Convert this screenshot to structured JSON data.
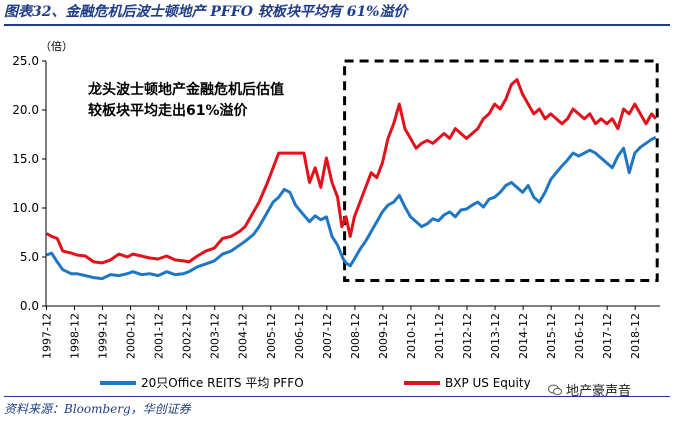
{
  "figure_title": "图表32、金融危机后波士顿地产 PFFO 较板块平均有 61%溢价",
  "source_note": "资料来源：Bloomberg，华创证券",
  "watermark_text": "地产豪声音",
  "watermark_icon": "wechat-icon",
  "colors": {
    "blue_series": "#1f77c4",
    "red_series": "#e3111b",
    "axis": "#000000",
    "title": "#1f3d8a"
  },
  "chart_data": {
    "type": "line",
    "y_unit": "（倍）",
    "annotation": [
      "龙头波士顿地产金融危机后估值",
      "较板块平均走出61%溢价"
    ],
    "highlight_box": {
      "x_from": 2008.55,
      "x_to": 2019.7,
      "y_from": 2.6,
      "y_to": 25.0,
      "style": "dashed"
    },
    "ylim": [
      0,
      25
    ],
    "yticks": [
      0.0,
      5.0,
      10.0,
      15.0,
      20.0,
      25.0
    ],
    "xlim": [
      1997.9,
      2019.8
    ],
    "xticks": [
      "1997-12",
      "1998-12",
      "1999-12",
      "2000-12",
      "2001-12",
      "2002-12",
      "2003-12",
      "2004-12",
      "2005-12",
      "2006-12",
      "2007-12",
      "2008-12",
      "2009-12",
      "2010-12",
      "2011-12",
      "2012-12",
      "2013-12",
      "2014-12",
      "2015-12",
      "2016-12",
      "2017-12",
      "2018-12"
    ],
    "legend_position": "bottom",
    "grid": false,
    "series": [
      {
        "name": "20只Office REITS 平均 PFFO",
        "color": "#1f77c4",
        "points": [
          [
            1997.92,
            5.2
          ],
          [
            1998.1,
            5.4
          ],
          [
            1998.3,
            4.5
          ],
          [
            1998.5,
            3.7
          ],
          [
            1998.8,
            3.3
          ],
          [
            1999.0,
            3.3
          ],
          [
            1999.3,
            3.1
          ],
          [
            1999.6,
            2.9
          ],
          [
            1999.9,
            2.8
          ],
          [
            2000.2,
            3.2
          ],
          [
            2000.5,
            3.1
          ],
          [
            2000.8,
            3.3
          ],
          [
            2001.0,
            3.5
          ],
          [
            2001.3,
            3.2
          ],
          [
            2001.6,
            3.3
          ],
          [
            2001.9,
            3.1
          ],
          [
            2002.2,
            3.5
          ],
          [
            2002.5,
            3.2
          ],
          [
            2002.8,
            3.3
          ],
          [
            2003.0,
            3.5
          ],
          [
            2003.3,
            4.0
          ],
          [
            2003.6,
            4.3
          ],
          [
            2003.9,
            4.6
          ],
          [
            2004.2,
            5.3
          ],
          [
            2004.5,
            5.6
          ],
          [
            2004.8,
            6.2
          ],
          [
            2005.0,
            6.6
          ],
          [
            2005.3,
            7.3
          ],
          [
            2005.5,
            8.1
          ],
          [
            2005.8,
            9.6
          ],
          [
            2006.0,
            10.6
          ],
          [
            2006.2,
            11.1
          ],
          [
            2006.4,
            11.9
          ],
          [
            2006.6,
            11.6
          ],
          [
            2006.8,
            10.3
          ],
          [
            2007.0,
            9.6
          ],
          [
            2007.3,
            8.6
          ],
          [
            2007.5,
            9.2
          ],
          [
            2007.7,
            8.8
          ],
          [
            2007.9,
            9.1
          ],
          [
            2008.1,
            7.1
          ],
          [
            2008.3,
            6.2
          ],
          [
            2008.5,
            4.8
          ],
          [
            2008.6,
            4.4
          ],
          [
            2008.75,
            4.1
          ],
          [
            2008.9,
            4.8
          ],
          [
            2009.1,
            5.8
          ],
          [
            2009.3,
            6.6
          ],
          [
            2009.5,
            7.6
          ],
          [
            2009.7,
            8.6
          ],
          [
            2009.9,
            9.6
          ],
          [
            2010.1,
            10.3
          ],
          [
            2010.3,
            10.6
          ],
          [
            2010.5,
            11.3
          ],
          [
            2010.7,
            10.1
          ],
          [
            2010.9,
            9.1
          ],
          [
            2011.1,
            8.6
          ],
          [
            2011.3,
            8.1
          ],
          [
            2011.5,
            8.4
          ],
          [
            2011.7,
            8.9
          ],
          [
            2011.9,
            8.7
          ],
          [
            2012.1,
            9.3
          ],
          [
            2012.3,
            9.6
          ],
          [
            2012.5,
            9.1
          ],
          [
            2012.7,
            9.8
          ],
          [
            2012.9,
            9.9
          ],
          [
            2013.1,
            10.3
          ],
          [
            2013.3,
            10.6
          ],
          [
            2013.5,
            10.1
          ],
          [
            2013.7,
            10.9
          ],
          [
            2013.9,
            11.1
          ],
          [
            2014.1,
            11.6
          ],
          [
            2014.3,
            12.3
          ],
          [
            2014.5,
            12.6
          ],
          [
            2014.7,
            12.1
          ],
          [
            2014.9,
            11.6
          ],
          [
            2015.1,
            12.3
          ],
          [
            2015.3,
            11.1
          ],
          [
            2015.5,
            10.6
          ],
          [
            2015.7,
            11.6
          ],
          [
            2015.9,
            12.9
          ],
          [
            2016.1,
            13.6
          ],
          [
            2016.3,
            14.3
          ],
          [
            2016.5,
            14.9
          ],
          [
            2016.7,
            15.6
          ],
          [
            2016.9,
            15.3
          ],
          [
            2017.1,
            15.6
          ],
          [
            2017.3,
            15.9
          ],
          [
            2017.5,
            15.6
          ],
          [
            2017.7,
            15.1
          ],
          [
            2017.9,
            14.6
          ],
          [
            2018.1,
            14.1
          ],
          [
            2018.3,
            15.3
          ],
          [
            2018.5,
            16.1
          ],
          [
            2018.7,
            13.6
          ],
          [
            2018.9,
            15.6
          ],
          [
            2019.1,
            16.2
          ],
          [
            2019.3,
            16.6
          ],
          [
            2019.5,
            17.0
          ],
          [
            2019.65,
            17.2
          ]
        ]
      },
      {
        "name": "BXP US Equity",
        "color": "#e3111b",
        "points": [
          [
            1997.92,
            7.4
          ],
          [
            1998.1,
            7.1
          ],
          [
            1998.3,
            6.9
          ],
          [
            1998.5,
            5.6
          ],
          [
            1998.8,
            5.4
          ],
          [
            1999.0,
            5.2
          ],
          [
            1999.3,
            5.1
          ],
          [
            1999.6,
            4.5
          ],
          [
            1999.9,
            4.4
          ],
          [
            2000.2,
            4.7
          ],
          [
            2000.5,
            5.3
          ],
          [
            2000.8,
            5.0
          ],
          [
            2001.0,
            5.3
          ],
          [
            2001.3,
            5.1
          ],
          [
            2001.6,
            4.9
          ],
          [
            2001.9,
            4.8
          ],
          [
            2002.2,
            5.1
          ],
          [
            2002.5,
            4.7
          ],
          [
            2002.8,
            4.6
          ],
          [
            2003.0,
            4.5
          ],
          [
            2003.3,
            5.1
          ],
          [
            2003.6,
            5.6
          ],
          [
            2003.9,
            5.9
          ],
          [
            2004.2,
            6.9
          ],
          [
            2004.5,
            7.1
          ],
          [
            2004.8,
            7.6
          ],
          [
            2005.0,
            8.1
          ],
          [
            2005.3,
            9.6
          ],
          [
            2005.5,
            10.6
          ],
          [
            2005.8,
            12.6
          ],
          [
            2006.0,
            14.1
          ],
          [
            2006.2,
            15.6
          ],
          [
            2006.5,
            15.6
          ],
          [
            2006.8,
            15.6
          ],
          [
            2007.1,
            15.6
          ],
          [
            2007.3,
            12.6
          ],
          [
            2007.5,
            14.1
          ],
          [
            2007.7,
            12.1
          ],
          [
            2007.9,
            15.1
          ],
          [
            2008.1,
            12.6
          ],
          [
            2008.3,
            11.1
          ],
          [
            2008.45,
            8.1
          ],
          [
            2008.6,
            9.1
          ],
          [
            2008.75,
            7.1
          ],
          [
            2008.9,
            9.1
          ],
          [
            2009.1,
            10.6
          ],
          [
            2009.3,
            12.1
          ],
          [
            2009.5,
            13.6
          ],
          [
            2009.7,
            13.1
          ],
          [
            2009.9,
            14.6
          ],
          [
            2010.1,
            17.1
          ],
          [
            2010.3,
            18.6
          ],
          [
            2010.5,
            20.6
          ],
          [
            2010.7,
            18.1
          ],
          [
            2010.9,
            17.1
          ],
          [
            2011.1,
            16.1
          ],
          [
            2011.3,
            16.6
          ],
          [
            2011.5,
            16.9
          ],
          [
            2011.7,
            16.6
          ],
          [
            2011.9,
            17.1
          ],
          [
            2012.1,
            17.6
          ],
          [
            2012.3,
            17.1
          ],
          [
            2012.5,
            18.1
          ],
          [
            2012.7,
            17.6
          ],
          [
            2012.9,
            17.1
          ],
          [
            2013.1,
            17.6
          ],
          [
            2013.3,
            18.1
          ],
          [
            2013.5,
            19.1
          ],
          [
            2013.7,
            19.6
          ],
          [
            2013.9,
            20.6
          ],
          [
            2014.1,
            20.1
          ],
          [
            2014.3,
            21.1
          ],
          [
            2014.5,
            22.6
          ],
          [
            2014.7,
            23.1
          ],
          [
            2014.9,
            21.6
          ],
          [
            2015.1,
            20.6
          ],
          [
            2015.3,
            19.6
          ],
          [
            2015.5,
            20.1
          ],
          [
            2015.7,
            19.1
          ],
          [
            2015.9,
            19.6
          ],
          [
            2016.1,
            19.1
          ],
          [
            2016.3,
            18.6
          ],
          [
            2016.5,
            19.1
          ],
          [
            2016.7,
            20.1
          ],
          [
            2016.9,
            19.6
          ],
          [
            2017.1,
            19.1
          ],
          [
            2017.3,
            19.6
          ],
          [
            2017.5,
            18.6
          ],
          [
            2017.7,
            19.1
          ],
          [
            2017.9,
            18.6
          ],
          [
            2018.1,
            19.1
          ],
          [
            2018.3,
            18.1
          ],
          [
            2018.5,
            20.1
          ],
          [
            2018.7,
            19.6
          ],
          [
            2018.9,
            20.6
          ],
          [
            2019.1,
            19.6
          ],
          [
            2019.3,
            18.6
          ],
          [
            2019.5,
            19.6
          ],
          [
            2019.65,
            19.1
          ]
        ]
      }
    ]
  }
}
